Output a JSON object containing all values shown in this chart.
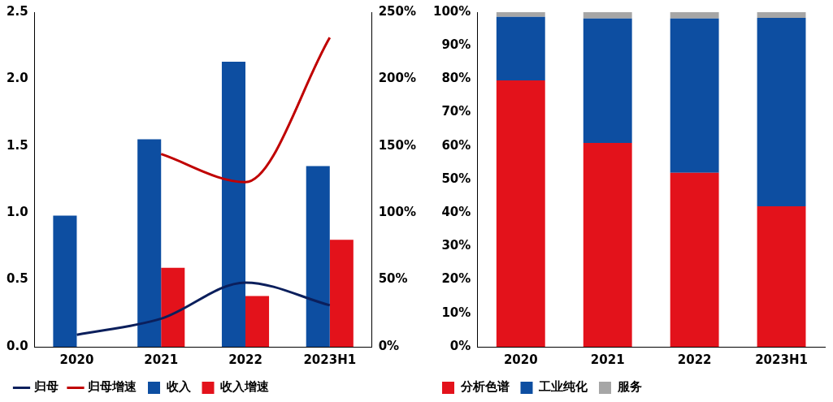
{
  "chart_data": [
    {
      "type": "bar",
      "categories": [
        "2020",
        "2021",
        "2022",
        "2023H1"
      ],
      "ylim": [
        0,
        2.5
      ],
      "yticks": [
        {
          "value": 0,
          "label": "0.0"
        },
        0.5,
        {
          "value": 1,
          "label": "1.0"
        },
        1.5,
        {
          "value": 2,
          "label": "2.0"
        },
        2.5
      ],
      "y2lim": [
        0,
        250
      ],
      "y2ticks": [
        {
          "value": 0,
          "label": "0%"
        },
        {
          "value": 50,
          "label": "50%"
        },
        {
          "value": 100,
          "label": "100%"
        },
        {
          "value": 150,
          "label": "150%"
        },
        {
          "value": 200,
          "label": "200%"
        },
        {
          "value": 250,
          "label": "250%"
        }
      ],
      "grid": false,
      "legend": "bottom",
      "series": [
        {
          "name": "收入",
          "color": "#0d4ea1",
          "values": [
            0.98,
            1.55,
            2.13,
            1.35
          ]
        },
        {
          "name": "收入增速",
          "color": "#e3121b",
          "axis": "y2",
          "values": [
            null,
            59,
            38,
            80
          ]
        },
        {
          "name": "归母",
          "type": "line",
          "color": "#0b1f5c",
          "values": [
            0.09,
            0.21,
            0.48,
            0.31
          ]
        },
        {
          "name": "归母增速",
          "type": "line",
          "color": "#c00000",
          "axis": "y2",
          "values": [
            null,
            144,
            123,
            231
          ]
        }
      ]
    },
    {
      "type": "bar",
      "stacked": true,
      "categories": [
        "2020",
        "2021",
        "2022",
        "2023H1"
      ],
      "ylim": [
        0,
        100
      ],
      "yticks": [
        {
          "value": 0,
          "label": "0%"
        },
        {
          "value": 10,
          "label": "10%"
        },
        {
          "value": 20,
          "label": "20%"
        },
        {
          "value": 30,
          "label": "30%"
        },
        {
          "value": 40,
          "label": "40%"
        },
        {
          "value": 50,
          "label": "50%"
        },
        {
          "value": 60,
          "label": "60%"
        },
        {
          "value": 70,
          "label": "70%"
        },
        {
          "value": 80,
          "label": "80%"
        },
        {
          "value": 90,
          "label": "90%"
        },
        {
          "value": 100,
          "label": "100%"
        }
      ],
      "grid": false,
      "legend": "bottom",
      "series": [
        {
          "name": "分析色谱",
          "color": "#e3121b",
          "values": [
            79.6,
            60.9,
            52,
            42
          ]
        },
        {
          "name": "工业纯化",
          "color": "#0d4ea1",
          "values": [
            19,
            37.2,
            46.1,
            56.3
          ]
        },
        {
          "name": "服务",
          "color": "#a6a6a6",
          "values": [
            1.4,
            1.9,
            1.9,
            1.7
          ]
        }
      ]
    }
  ]
}
